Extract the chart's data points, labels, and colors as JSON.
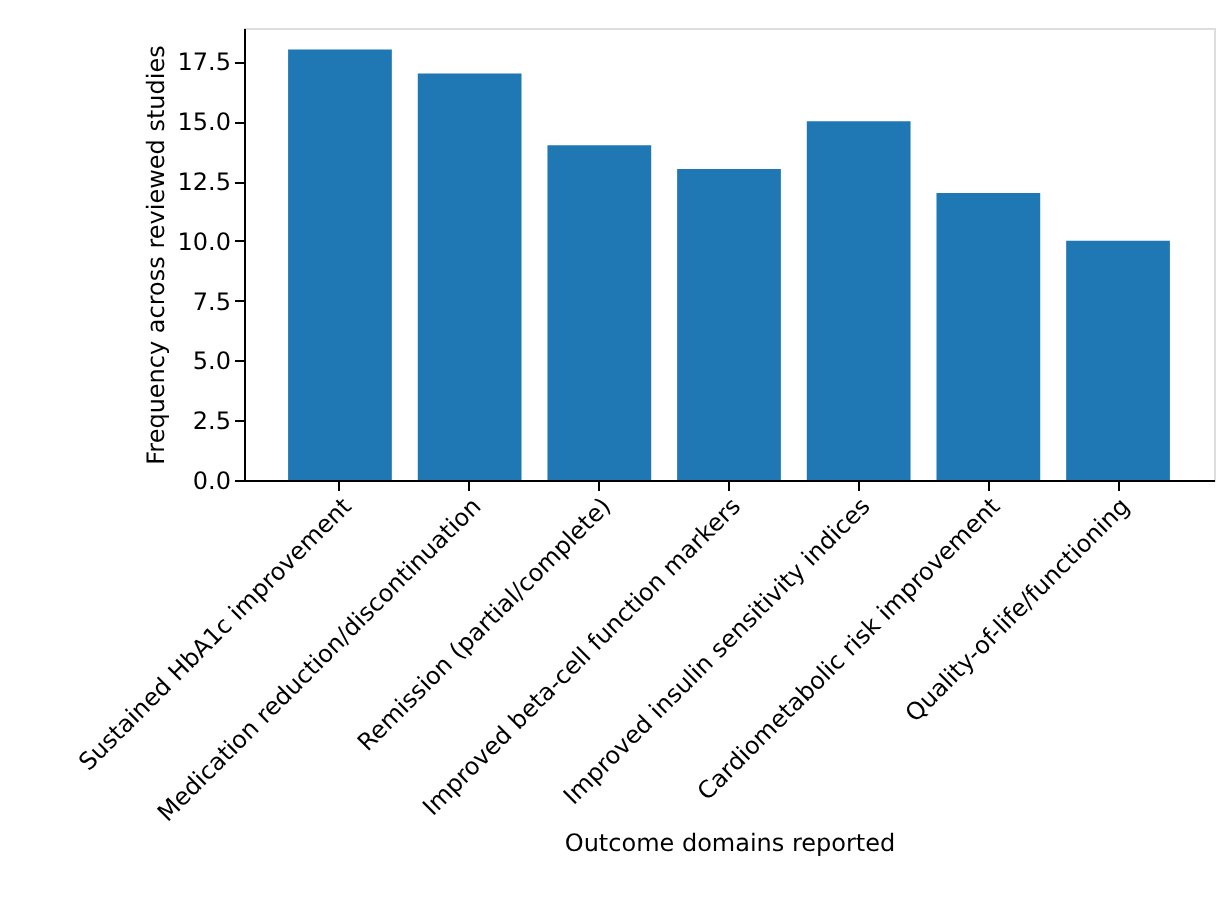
{
  "chart_data": {
    "type": "bar",
    "xlabel": "Outcome domains reported",
    "ylabel": "Frequency across reviewed studies",
    "categories": [
      "Sustained HbA1c improvement",
      "Medication reduction/discontinuation",
      "Remission (partial/complete)",
      "Improved beta-cell function markers",
      "Improved insulin sensitivity indices",
      "Cardiometabolic risk improvement",
      "Quality-of-life/functioning"
    ],
    "values": [
      18,
      17,
      14,
      13,
      15,
      12,
      10
    ],
    "color": "#1f77b4",
    "ylim": [
      0,
      18.9
    ],
    "yticks": [
      {
        "value": 0,
        "label": "0.0"
      },
      2.5,
      {
        "value": 5,
        "label": "5.0"
      },
      7.5,
      {
        "value": 10,
        "label": "10.0"
      },
      12.5,
      {
        "value": 15,
        "label": "15.0"
      },
      17.5
    ],
    "grid": false
  }
}
